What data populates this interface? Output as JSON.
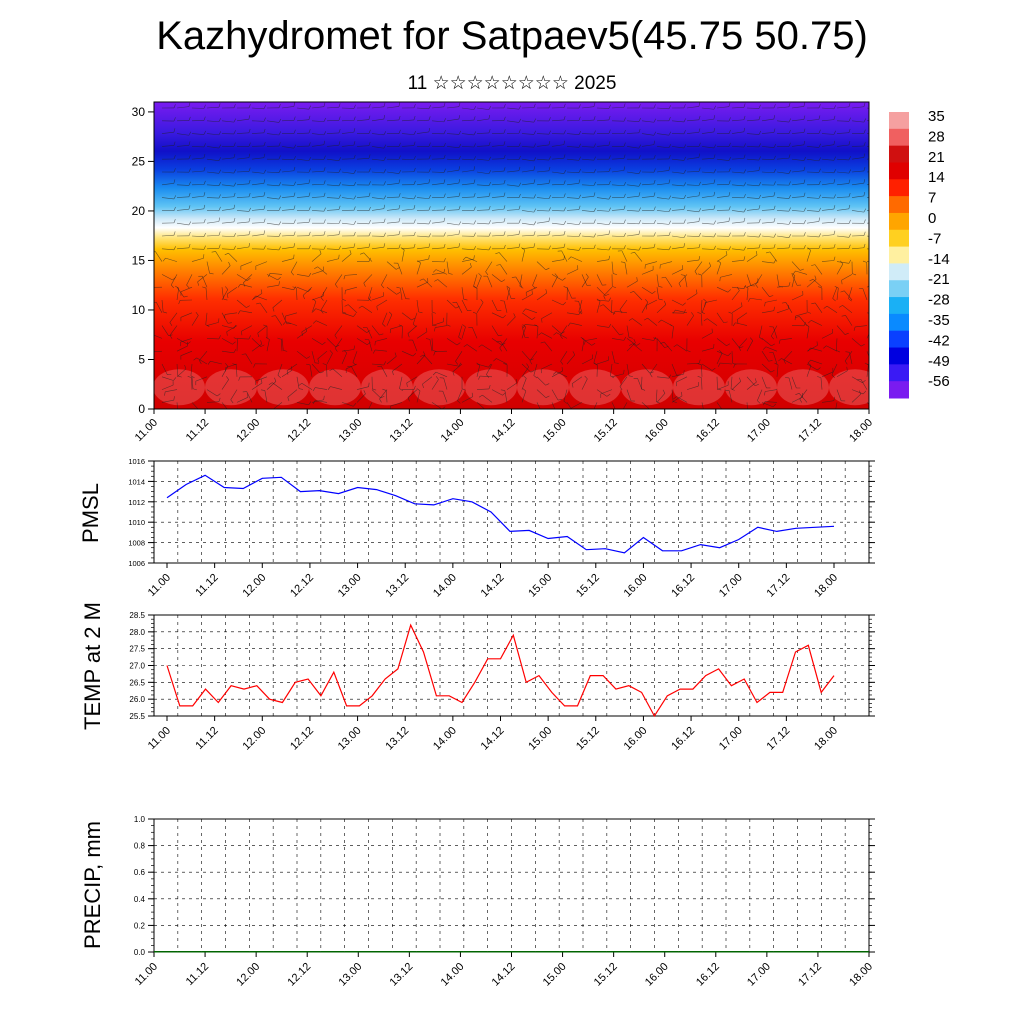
{
  "page": {
    "title": "Kazhydromet for Satpaev5(45.75 50.75)",
    "subtitle": "11 ☆☆☆☆☆☆☆☆ 2025"
  },
  "colors": {
    "pmsl_line": "#0000ff",
    "temp_line": "#ff0000",
    "precip_bars": "#006400",
    "colorbar": [
      "#7a1bf0",
      "#3a1af5",
      "#0000e0",
      "#0a40ff",
      "#0a8aff",
      "#1ab0f5",
      "#7ad0f5",
      "#d0ecf8",
      "#fff0a0",
      "#ffd020",
      "#ffa500",
      "#ff6a00",
      "#ff2000",
      "#e00000",
      "#d01010",
      "#f06060",
      "#f5a0a0"
    ]
  },
  "chart_data": [
    {
      "type": "heatmap",
      "title": "",
      "xlabel": "",
      "ylabel": "",
      "x_ticks": [
        "11.00",
        "11.12",
        "12.00",
        "12.12",
        "13.00",
        "13.12",
        "14.00",
        "14.12",
        "15.00",
        "15.12",
        "16.00",
        "16.12",
        "17.00",
        "17.12",
        "18.00"
      ],
      "y_ticks": [
        "0",
        "5",
        "10",
        "15",
        "20",
        "25",
        "30"
      ],
      "ylim": [
        0,
        31
      ],
      "colorbar_labels": [
        "35",
        "28",
        "21",
        "14",
        "7",
        "0",
        "-7",
        "-14",
        "-21",
        "-28",
        "-35",
        "-42",
        "-49",
        "-56"
      ],
      "overlay": "wind barbs"
    },
    {
      "type": "line",
      "ylabel": "PMSL",
      "x_ticks": [
        "11.00",
        "11.12",
        "12.00",
        "12.12",
        "13.00",
        "13.12",
        "14.00",
        "14.12",
        "15.00",
        "15.12",
        "16.00",
        "16.12",
        "17.00",
        "17.12",
        "18.00"
      ],
      "y_ticks": [
        "1016",
        "1014",
        "1012",
        "1010",
        "1008",
        "1006"
      ],
      "ylim": [
        1006,
        1016
      ],
      "grid": true,
      "values": [
        1012.4,
        1013.7,
        1014.6,
        1013.4,
        1013.3,
        1014.3,
        1014.4,
        1013.0,
        1013.1,
        1012.8,
        1013.4,
        1013.2,
        1012.6,
        1011.8,
        1011.7,
        1012.3,
        1012.0,
        1011.0,
        1009.1,
        1009.2,
        1008.4,
        1008.6,
        1007.3,
        1007.4,
        1007.0,
        1008.5,
        1007.2,
        1007.2,
        1007.8,
        1007.5,
        1008.3,
        1009.5,
        1009.1,
        1009.4,
        1009.5,
        1009.6
      ]
    },
    {
      "type": "line",
      "ylabel": "TEMP at 2 M",
      "x_ticks": [
        "11.00",
        "11.12",
        "12.00",
        "12.12",
        "13.00",
        "13.12",
        "14.00",
        "14.12",
        "15.00",
        "15.12",
        "16.00",
        "16.12",
        "17.00",
        "17.12",
        "18.00"
      ],
      "y_ticks": [
        "28.5",
        "28.0",
        "27.5",
        "27.0",
        "26.5",
        "26.0",
        "25.5"
      ],
      "ylim": [
        25.5,
        28.5
      ],
      "grid": true,
      "values": [
        27.0,
        25.8,
        25.8,
        26.3,
        25.9,
        26.4,
        26.3,
        26.4,
        26.0,
        25.9,
        26.5,
        26.6,
        26.1,
        26.8,
        25.8,
        25.8,
        26.1,
        26.6,
        26.9,
        28.2,
        27.4,
        26.1,
        26.1,
        25.9,
        26.5,
        27.2,
        27.2,
        27.9,
        26.5,
        26.7,
        26.2,
        25.8,
        25.8,
        26.7,
        26.7,
        26.3,
        26.4,
        26.2,
        25.5,
        26.1,
        26.3,
        26.3,
        26.7,
        26.9,
        26.4,
        26.6,
        25.9,
        26.2,
        26.2,
        27.4,
        27.6,
        26.2,
        26.7
      ]
    },
    {
      "type": "bar",
      "ylabel": "PRECIP, mm",
      "x_ticks": [
        "11.00",
        "11.12",
        "12.00",
        "12.12",
        "13.00",
        "13.12",
        "14.00",
        "14.12",
        "15.00",
        "15.12",
        "16.00",
        "16.12",
        "17.00",
        "17.12",
        "18.00"
      ],
      "y_ticks": [
        "1.0",
        "0.8",
        "0.6",
        "0.4",
        "0.2",
        "0.0"
      ],
      "ylim": [
        0,
        1.0
      ],
      "grid": true,
      "values": [
        0,
        0,
        0,
        0,
        0,
        0,
        0,
        0,
        0,
        0,
        0,
        0,
        0,
        0,
        0,
        0,
        0,
        0,
        0,
        0,
        0,
        0,
        0,
        0,
        0,
        0,
        0,
        0,
        0,
        0
      ]
    }
  ]
}
